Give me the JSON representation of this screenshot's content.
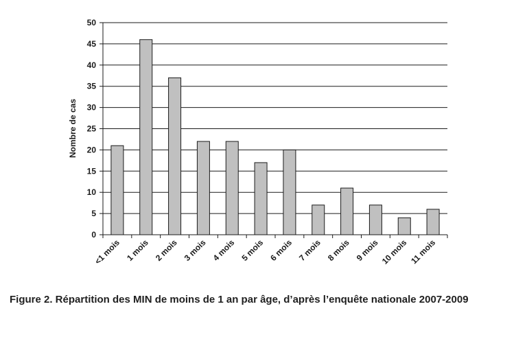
{
  "chart_data": {
    "type": "bar",
    "categories": [
      "<1 mois",
      "1 mois",
      "2 mois",
      "3 mois",
      "4 mois",
      "5 mois",
      "6 mois",
      "7 mois",
      "8 mois",
      "9 mois",
      "10 mois",
      "11 mois"
    ],
    "values": [
      21,
      46,
      37,
      22,
      22,
      17,
      20,
      7,
      11,
      7,
      4,
      6
    ],
    "ylabel": "Nombre de cas",
    "xlabel": "",
    "ylim": [
      0,
      50
    ],
    "yticks": [
      0,
      5,
      10,
      15,
      20,
      25,
      30,
      35,
      40,
      45,
      50
    ],
    "grid": true,
    "bar_color": "#c0c0c0",
    "bar_edge_color": "#1a1a1a"
  },
  "caption": "Figure 2. Répartition des MIN de moins de 1 an par âge, d’après l’enquête nationale 2007-2009"
}
